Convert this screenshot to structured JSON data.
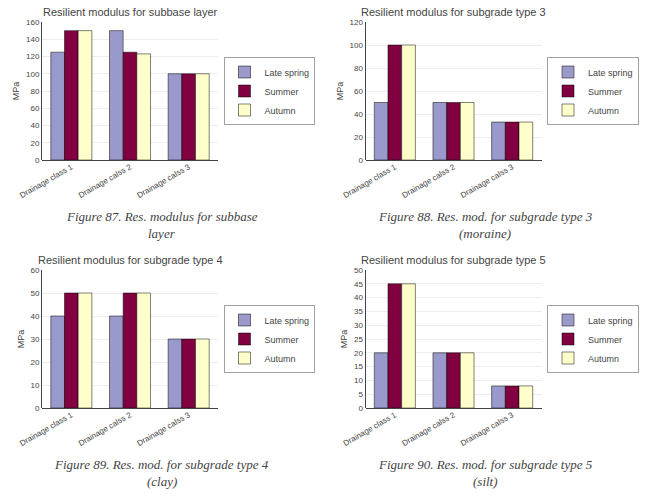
{
  "chart_data": [
    {
      "type": "bar",
      "title": "Resilient modulus for subbase layer",
      "ylabel": "MPa",
      "categories": [
        "Drainage class 1",
        "Drainage calss 2",
        "Drainage calss 3"
      ],
      "series": [
        {
          "name": "Late spring",
          "color": "#9999CC",
          "values": [
            125,
            150,
            100
          ]
        },
        {
          "name": "Summer",
          "color": "#800040",
          "values": [
            150,
            125,
            100
          ]
        },
        {
          "name": "Autumn",
          "color": "#FFFFCC",
          "values": [
            150,
            123,
            100
          ]
        }
      ],
      "ylim": [
        0,
        160
      ],
      "yticks": [
        0,
        20,
        40,
        60,
        80,
        100,
        120,
        140,
        160
      ],
      "grid": true,
      "legend": "right",
      "annotations": [
        "Figure 87. Res. modulus for subbase",
        "layer"
      ]
    },
    {
      "type": "bar",
      "title": "Resilient modulus for subgrade type 3",
      "ylabel": "MPa",
      "categories": [
        "Drainage class 1",
        "Drainage calss 2",
        "Drainage calss 3"
      ],
      "series": [
        {
          "name": "Late spring",
          "color": "#9999CC",
          "values": [
            50,
            50,
            33
          ]
        },
        {
          "name": "Summer",
          "color": "#800040",
          "values": [
            100,
            50,
            33
          ]
        },
        {
          "name": "Autumn",
          "color": "#FFFFCC",
          "values": [
            100,
            50,
            33
          ]
        }
      ],
      "ylim": [
        0,
        120
      ],
      "yticks": [
        0,
        20,
        40,
        60,
        80,
        100,
        120
      ],
      "grid": true,
      "legend": "right",
      "annotations": [
        "Figure 88. Res. mod. for subgrade type 3",
        "(moraine)"
      ]
    },
    {
      "type": "bar",
      "title": "Resilient modulus for subgrade type 4",
      "ylabel": "MPa",
      "categories": [
        "Drainage class 1",
        "Drainage calss 2",
        "Drainage calss 3"
      ],
      "series": [
        {
          "name": "Late spring",
          "color": "#9999CC",
          "values": [
            40,
            40,
            30
          ]
        },
        {
          "name": "Summer",
          "color": "#800040",
          "values": [
            50,
            50,
            30
          ]
        },
        {
          "name": "Autumn",
          "color": "#FFFFCC",
          "values": [
            50,
            50,
            30
          ]
        }
      ],
      "ylim": [
        0,
        60
      ],
      "yticks": [
        0,
        10,
        20,
        30,
        40,
        50,
        60
      ],
      "grid": true,
      "legend": "right",
      "annotations": [
        "Figure 89. Res. mod. for subgrade type 4",
        "(clay)"
      ]
    },
    {
      "type": "bar",
      "title": "Resilient modulus for subgrade type 5",
      "ylabel": "MPa",
      "categories": [
        "Drainage class 1",
        "Drainage calss 2",
        "Drainage calss 3"
      ],
      "series": [
        {
          "name": "Late spring",
          "color": "#9999CC",
          "values": [
            20,
            20,
            8
          ]
        },
        {
          "name": "Summer",
          "color": "#800040",
          "values": [
            45,
            20,
            8
          ]
        },
        {
          "name": "Autumn",
          "color": "#FFFFCC",
          "values": [
            45,
            20,
            8
          ]
        }
      ],
      "ylim": [
        0,
        50
      ],
      "yticks": [
        0,
        5,
        10,
        15,
        20,
        25,
        30,
        35,
        40,
        45,
        50
      ],
      "grid": true,
      "legend": "right",
      "annotations": [
        "Figure 90. Res. mod. for subgrade type 5",
        "(silt)"
      ]
    }
  ]
}
